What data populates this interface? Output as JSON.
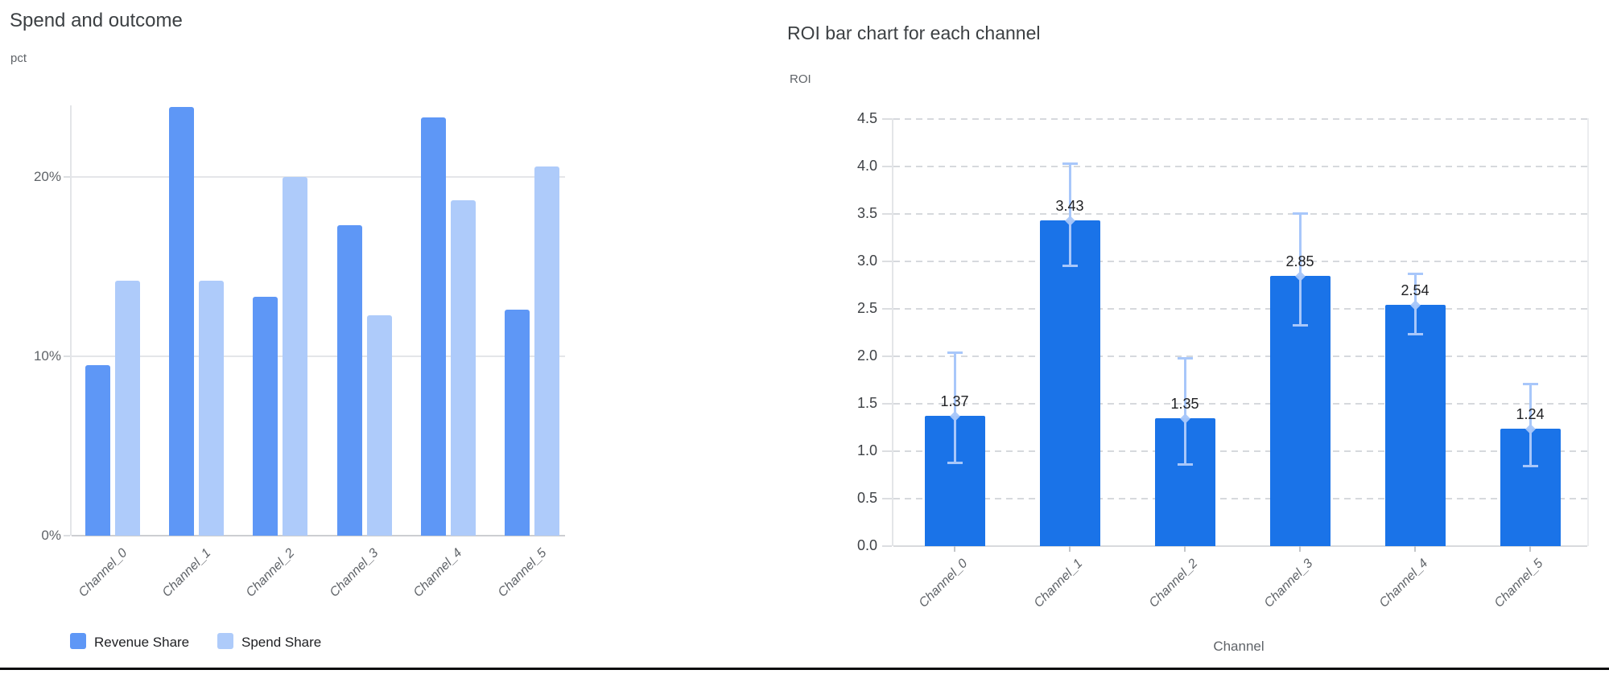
{
  "page": {
    "background": "#ffffff",
    "bottom_divider_color": "#0b0b0c"
  },
  "chart_data": [
    {
      "type": "bar",
      "title": "Spend and outcome",
      "ylabel": "pct",
      "xlabel": "",
      "categories": [
        "Channel_0",
        "Channel_1",
        "Channel_2",
        "Channel_3",
        "Channel_4",
        "Channel_5"
      ],
      "series": [
        {
          "name": "Revenue Share",
          "color": "#5e97f6",
          "values": [
            9.5,
            23.9,
            13.3,
            17.3,
            23.3,
            12.6
          ]
        },
        {
          "name": "Spend Share",
          "color": "#aecbfa",
          "values": [
            14.2,
            14.2,
            20.0,
            12.3,
            18.7,
            20.6
          ]
        }
      ],
      "yticks": [
        {
          "label": "0%",
          "value": 0
        },
        {
          "label": "10%",
          "value": 10
        },
        {
          "label": "20%",
          "value": 20
        }
      ],
      "ylim": [
        0,
        24
      ],
      "unit": "%",
      "grid": "solid",
      "legend_position": "bottom-left"
    },
    {
      "type": "bar",
      "title": "ROI bar chart for each channel",
      "ylabel": "ROI",
      "xlabel": "Channel",
      "categories": [
        "Channel_0",
        "Channel_1",
        "Channel_2",
        "Channel_3",
        "Channel_4",
        "Channel_5"
      ],
      "values": [
        1.37,
        3.43,
        1.35,
        2.85,
        2.54,
        1.24
      ],
      "bar_labels": [
        "1.37",
        "3.43",
        "1.35",
        "2.85",
        "2.54",
        "1.24"
      ],
      "error_low": [
        0.87,
        2.95,
        0.86,
        2.32,
        2.23,
        0.84
      ],
      "error_high": [
        2.04,
        4.03,
        1.98,
        3.51,
        2.87,
        1.71
      ],
      "bar_color": "#1a73e8",
      "error_color": "#a8c7fa",
      "yticks": [
        {
          "label": "0.0",
          "value": 0.0
        },
        {
          "label": "0.5",
          "value": 0.5
        },
        {
          "label": "1.0",
          "value": 1.0
        },
        {
          "label": "1.5",
          "value": 1.5
        },
        {
          "label": "2.0",
          "value": 2.0
        },
        {
          "label": "2.5",
          "value": 2.5
        },
        {
          "label": "3.0",
          "value": 3.0
        },
        {
          "label": "3.5",
          "value": 3.5
        },
        {
          "label": "4.0",
          "value": 4.0
        },
        {
          "label": "4.5",
          "value": 4.5
        }
      ],
      "ylim": [
        0,
        4.5
      ],
      "grid": "dashed",
      "legend_position": "none"
    }
  ]
}
